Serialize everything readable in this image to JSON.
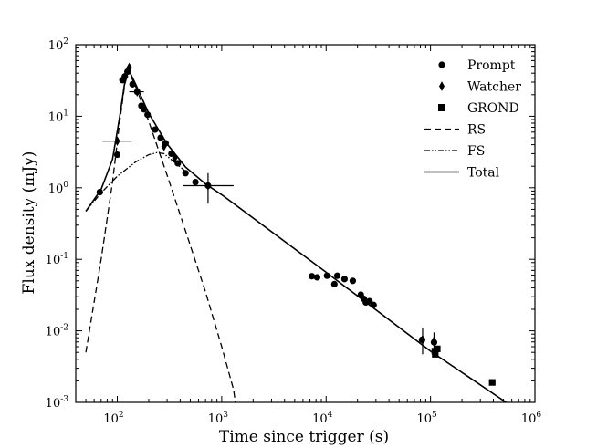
{
  "chart_data": {
    "type": "scatter",
    "xlabel": "Time since trigger (s)",
    "ylabel": "Flux density (mJy)",
    "x_scale": "log",
    "y_scale": "log",
    "xlim": [
      40,
      1000000
    ],
    "ylim": [
      0.001,
      100
    ],
    "x_ticks": [
      {
        "value": 100,
        "base": "10",
        "exp": "2"
      },
      {
        "value": 1000,
        "base": "10",
        "exp": "3"
      },
      {
        "value": 10000,
        "base": "10",
        "exp": "4"
      },
      {
        "value": 100000,
        "base": "10",
        "exp": "5"
      },
      {
        "value": 1000000,
        "base": "10",
        "exp": "6"
      }
    ],
    "y_ticks": [
      {
        "value": 0.001,
        "base": "10",
        "exp": "-3"
      },
      {
        "value": 0.01,
        "base": "10",
        "exp": "-2"
      },
      {
        "value": 0.1,
        "base": "10",
        "exp": "-1"
      },
      {
        "value": 1,
        "base": "10",
        "exp": "0"
      },
      {
        "value": 10,
        "base": "10",
        "exp": "1"
      },
      {
        "value": 100,
        "base": "10",
        "exp": "2"
      }
    ],
    "grid": false,
    "legend_position": "top-right",
    "legend": [
      {
        "label": "Prompt",
        "kind": "marker",
        "marker": "circle"
      },
      {
        "label": "Watcher",
        "kind": "marker",
        "marker": "diamond"
      },
      {
        "label": "GROND",
        "kind": "marker",
        "marker": "square"
      },
      {
        "label": "RS",
        "kind": "line",
        "dash": "dashed"
      },
      {
        "label": "FS",
        "kind": "line",
        "dash": "dashdotdot"
      },
      {
        "label": "Total",
        "kind": "line",
        "dash": "solid"
      }
    ],
    "series": [
      {
        "name": "Prompt",
        "marker": "circle",
        "points": [
          {
            "x": 68,
            "y": 0.87
          },
          {
            "x": 100,
            "y": 2.9
          },
          {
            "x": 112,
            "y": 32
          },
          {
            "x": 118,
            "y": 36
          },
          {
            "x": 125,
            "y": 42
          },
          {
            "x": 140,
            "y": 28
          },
          {
            "x": 155,
            "y": 22
          },
          {
            "x": 170,
            "y": 14
          },
          {
            "x": 180,
            "y": 12.5
          },
          {
            "x": 195,
            "y": 10.5
          },
          {
            "x": 230,
            "y": 6.5
          },
          {
            "x": 260,
            "y": 5
          },
          {
            "x": 290,
            "y": 4.2
          },
          {
            "x": 330,
            "y": 3
          },
          {
            "x": 380,
            "y": 2.2
          },
          {
            "x": 450,
            "y": 1.6
          },
          {
            "x": 560,
            "y": 1.2
          },
          {
            "x": 740,
            "y": 1.07
          },
          {
            "x": 7300,
            "y": 0.058
          },
          {
            "x": 8200,
            "y": 0.056
          },
          {
            "x": 10200,
            "y": 0.059
          },
          {
            "x": 12000,
            "y": 0.045
          },
          {
            "x": 12800,
            "y": 0.059
          },
          {
            "x": 15000,
            "y": 0.053
          },
          {
            "x": 18000,
            "y": 0.05
          },
          {
            "x": 21500,
            "y": 0.032
          },
          {
            "x": 23000,
            "y": 0.028
          },
          {
            "x": 24000,
            "y": 0.025
          },
          {
            "x": 26000,
            "y": 0.026
          },
          {
            "x": 28500,
            "y": 0.023
          },
          {
            "x": 83000,
            "y": 0.0075
          },
          {
            "x": 108000,
            "y": 0.0069
          }
        ]
      },
      {
        "name": "Watcher",
        "marker": "diamond",
        "points": [
          {
            "x": 100,
            "y": 4.5,
            "xerr": [
              72,
              138
            ]
          },
          {
            "x": 130,
            "y": 48
          },
          {
            "x": 155,
            "y": 22,
            "xerr": [
              130,
              180
            ]
          },
          {
            "x": 280,
            "y": 3.8
          },
          {
            "x": 355,
            "y": 2.6
          },
          {
            "x": 740,
            "y": 1.07,
            "xerr": [
              430,
              1300
            ],
            "yerr": [
              0.6,
              1.6
            ]
          },
          {
            "x": 84000,
            "y": 0.0075,
            "yerr": [
              0.0047,
              0.011
            ]
          },
          {
            "x": 108000,
            "y": 0.0072,
            "yerr": [
              0.005,
              0.0095
            ]
          }
        ]
      },
      {
        "name": "GROND",
        "marker": "square",
        "points": [
          {
            "x": 110000,
            "y": 0.0052
          },
          {
            "x": 116000,
            "y": 0.0056
          },
          {
            "x": 111000,
            "y": 0.0047
          },
          {
            "x": 390000,
            "y": 0.0019
          }
        ]
      },
      {
        "name": "RS",
        "line": "dashed",
        "points": [
          {
            "x": 50,
            "y": 0.005
          },
          {
            "x": 70,
            "y": 0.1
          },
          {
            "x": 90,
            "y": 1.2
          },
          {
            "x": 105,
            "y": 8
          },
          {
            "x": 118,
            "y": 28
          },
          {
            "x": 128,
            "y": 43
          },
          {
            "x": 150,
            "y": 26
          },
          {
            "x": 200,
            "y": 8.5
          },
          {
            "x": 300,
            "y": 1.5
          },
          {
            "x": 450,
            "y": 0.25
          },
          {
            "x": 700,
            "y": 0.035
          },
          {
            "x": 1000,
            "y": 0.006
          },
          {
            "x": 1300,
            "y": 0.0015
          },
          {
            "x": 1350,
            "y": 0.001
          }
        ]
      },
      {
        "name": "FS",
        "line": "dashdotdot",
        "points": [
          {
            "x": 50,
            "y": 0.47
          },
          {
            "x": 70,
            "y": 0.85
          },
          {
            "x": 100,
            "y": 1.45
          },
          {
            "x": 150,
            "y": 2.3
          },
          {
            "x": 200,
            "y": 2.9
          },
          {
            "x": 240,
            "y": 3.1
          },
          {
            "x": 280,
            "y": 3.0
          },
          {
            "x": 350,
            "y": 2.3
          },
          {
            "x": 450,
            "y": 1.7
          }
        ]
      },
      {
        "name": "Total",
        "line": "solid",
        "points": [
          {
            "x": 50,
            "y": 0.47
          },
          {
            "x": 70,
            "y": 0.95
          },
          {
            "x": 90,
            "y": 2.5
          },
          {
            "x": 105,
            "y": 9.5
          },
          {
            "x": 118,
            "y": 30
          },
          {
            "x": 128,
            "y": 45
          },
          {
            "x": 150,
            "y": 28
          },
          {
            "x": 200,
            "y": 11
          },
          {
            "x": 300,
            "y": 4.1
          },
          {
            "x": 450,
            "y": 1.95
          },
          {
            "x": 700,
            "y": 1.13
          },
          {
            "x": 1000,
            "y": 0.8
          },
          {
            "x": 10000,
            "y": 0.066
          },
          {
            "x": 100000,
            "y": 0.0052
          },
          {
            "x": 530000,
            "y": 0.001
          }
        ]
      }
    ]
  }
}
